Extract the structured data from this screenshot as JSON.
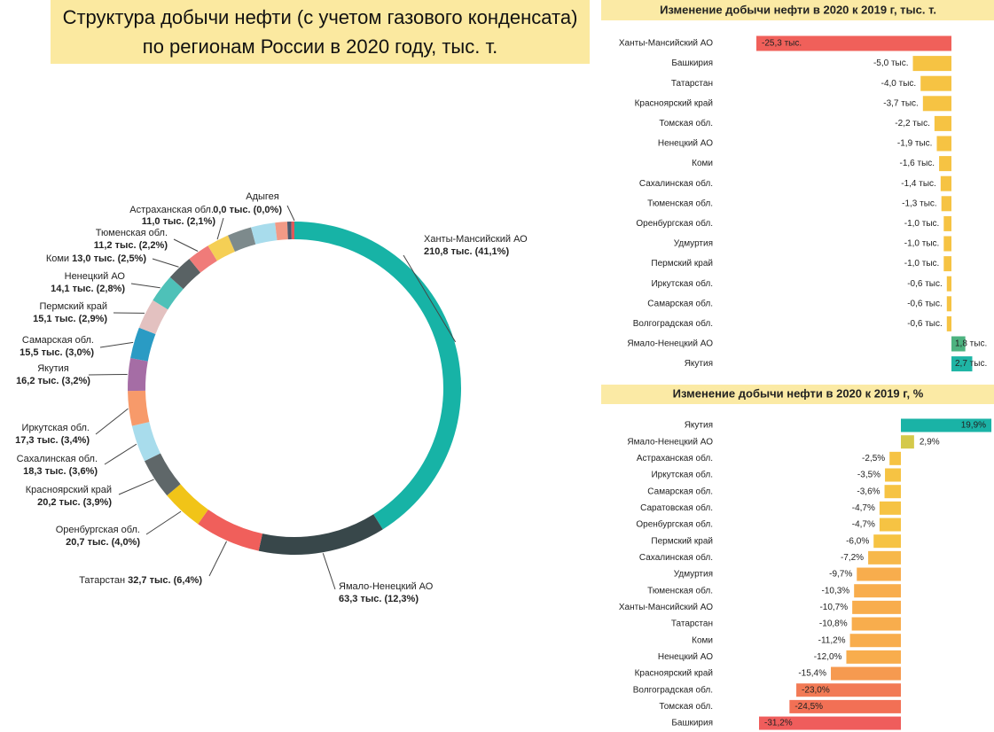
{
  "chart_data": [
    {
      "type": "donut",
      "title": "Структура добычи нефти (с учетом газового конденсата) по регионам России в 2020 году, тыс. т.",
      "categories": [
        "Ханты-Мансийский АО",
        "Ямало-Ненецкий АО",
        "Татарстан",
        "Оренбургская обл.",
        "Красноярский край",
        "Сахалинская обл.",
        "Иркутская обл.",
        "Якутия",
        "Самарская обл.",
        "Пермский край",
        "Ненецкий АО",
        "Коми",
        "Тюменская обл.",
        "Астраханская обл.",
        null,
        null,
        null,
        null,
        null,
        "Адыгея"
      ],
      "values": [
        210.8,
        63.3,
        32.7,
        20.7,
        20.2,
        18.3,
        17.3,
        16.2,
        15.5,
        15.1,
        14.1,
        13.0,
        11.2,
        11.0,
        12.0,
        12.0,
        6.0,
        2.0,
        1.5,
        0.0
      ],
      "value_labels": [
        "210,8 тыс. (41,1%)",
        "63,3 тыс. (12,3%)",
        "32,7 тыс. (6,4%)",
        "20,7 тыс. (4,0%)",
        "20,2 тыс. (3,9%)",
        "18,3 тыс. (3,6%)",
        "17,3 тыс. (3,4%)",
        "16,2 тыс. (3,2%)",
        "15,5 тыс. (3,0%)",
        "15,1 тыс. (2,9%)",
        "14,1 тыс. (2,8%)",
        "13,0 тыс. (2,5%)",
        "11,2 тыс. (2,2%)",
        "11,0 тыс. (2,1%)",
        null,
        null,
        null,
        null,
        null,
        "0,0 тыс. (0,0%)"
      ],
      "colors": [
        "#17b3a6",
        "#38474a",
        "#f05f5b",
        "#f1c418",
        "#5f6769",
        "#a8dcec",
        "#f79a6a",
        "#a56da5",
        "#2a9bc4",
        "#e3c1c0",
        "#4ec1b8",
        "#596264",
        "#f07b79",
        "#f5cf55",
        "#7d8a8c",
        "#a8dcec",
        "#f29a86",
        "#4b5a6e",
        "#e05a5a",
        "#2a3a50"
      ]
    },
    {
      "type": "bar",
      "title": "Изменение добычи нефти в 2020 к 2019 г, тыс. т.",
      "categories": [
        "Ханты-Мансийский АО",
        "Башкирия",
        "Татарстан",
        "Красноярский край",
        "Томская обл.",
        "Ненецкий АО",
        "Коми",
        "Сахалинская обл.",
        "Тюменская обл.",
        "Оренбургская обл.",
        "Удмуртия",
        "Пермский край",
        "Иркутская обл.",
        "Самарская обл.",
        "Волгоградская обл.",
        "Ямало-Ненецкий АО",
        "Якутия"
      ],
      "values": [
        -25.3,
        -5.0,
        -4.0,
        -3.7,
        -2.2,
        -1.9,
        -1.6,
        -1.4,
        -1.3,
        -1.0,
        -1.0,
        -1.0,
        -0.6,
        -0.6,
        -0.6,
        1.8,
        2.7
      ],
      "value_labels": [
        "-25,3 тыс.",
        "-5,0 тыс.",
        "-4,0 тыс.",
        "-3,7 тыс.",
        "-2,2 тыс.",
        "-1,9 тыс.",
        "-1,6 тыс.",
        "-1,4 тыс.",
        "-1,3 тыс.",
        "-1,0 тыс.",
        "-1,0 тыс.",
        "-1,0 тыс.",
        "-0,6 тыс.",
        "-0,6 тыс.",
        "-0,6 тыс.",
        "1,8 тыс.",
        "2,7 тыс."
      ],
      "colors": [
        "#f0605a",
        "#f6c343",
        "#f6c343",
        "#f6c343",
        "#f6c343",
        "#f6c343",
        "#f6c343",
        "#f6c343",
        "#f6c343",
        "#f6c343",
        "#f6c343",
        "#f6c343",
        "#f6c343",
        "#f6c343",
        "#f6c343",
        "#4db380",
        "#1fb5a5"
      ]
    },
    {
      "type": "bar",
      "title": "Изменение добычи нефти в 2020 к 2019 г, %",
      "categories": [
        "Якутия",
        "Ямало-Ненецкий АО",
        "Астраханская обл.",
        "Иркутская обл.",
        "Самарская обл.",
        "Саратовская обл.",
        "Оренбургская обл.",
        "Пермский край",
        "Сахалинская обл.",
        "Удмуртия",
        "Тюменская обл.",
        "Ханты-Мансийский АО",
        "Татарстан",
        "Коми",
        "Ненецкий АО",
        "Красноярский край",
        "Волгоградская обл.",
        "Томская обл.",
        "Башкирия"
      ],
      "values": [
        19.9,
        2.9,
        -2.5,
        -3.5,
        -3.6,
        -4.7,
        -4.7,
        -6.0,
        -7.2,
        -9.7,
        -10.3,
        -10.7,
        -10.8,
        -11.2,
        -12.0,
        -15.4,
        -23.0,
        -24.5,
        -31.2
      ],
      "value_labels": [
        "19,9%",
        "2,9%",
        "-2,5%",
        "-3,5%",
        "-3,6%",
        "-4,7%",
        "-4,7%",
        "-6,0%",
        "-7,2%",
        "-9,7%",
        "-10,3%",
        "-10,7%",
        "-10,8%",
        "-11,2%",
        "-12,0%",
        "-15,4%",
        "-23,0%",
        "-24,5%",
        "-31,2%"
      ],
      "colors": [
        "#1ab3a6",
        "#d4c94a",
        "#f6c343",
        "#f6c343",
        "#f6c343",
        "#f6c343",
        "#f6c343",
        "#f6c343",
        "#f7b84a",
        "#f8ad4d",
        "#f8ad4d",
        "#f8ad4d",
        "#f8ad4d",
        "#f8ad4d",
        "#f8ad4d",
        "#f69a50",
        "#f27a55",
        "#f27055",
        "#ef5d5c"
      ]
    }
  ]
}
